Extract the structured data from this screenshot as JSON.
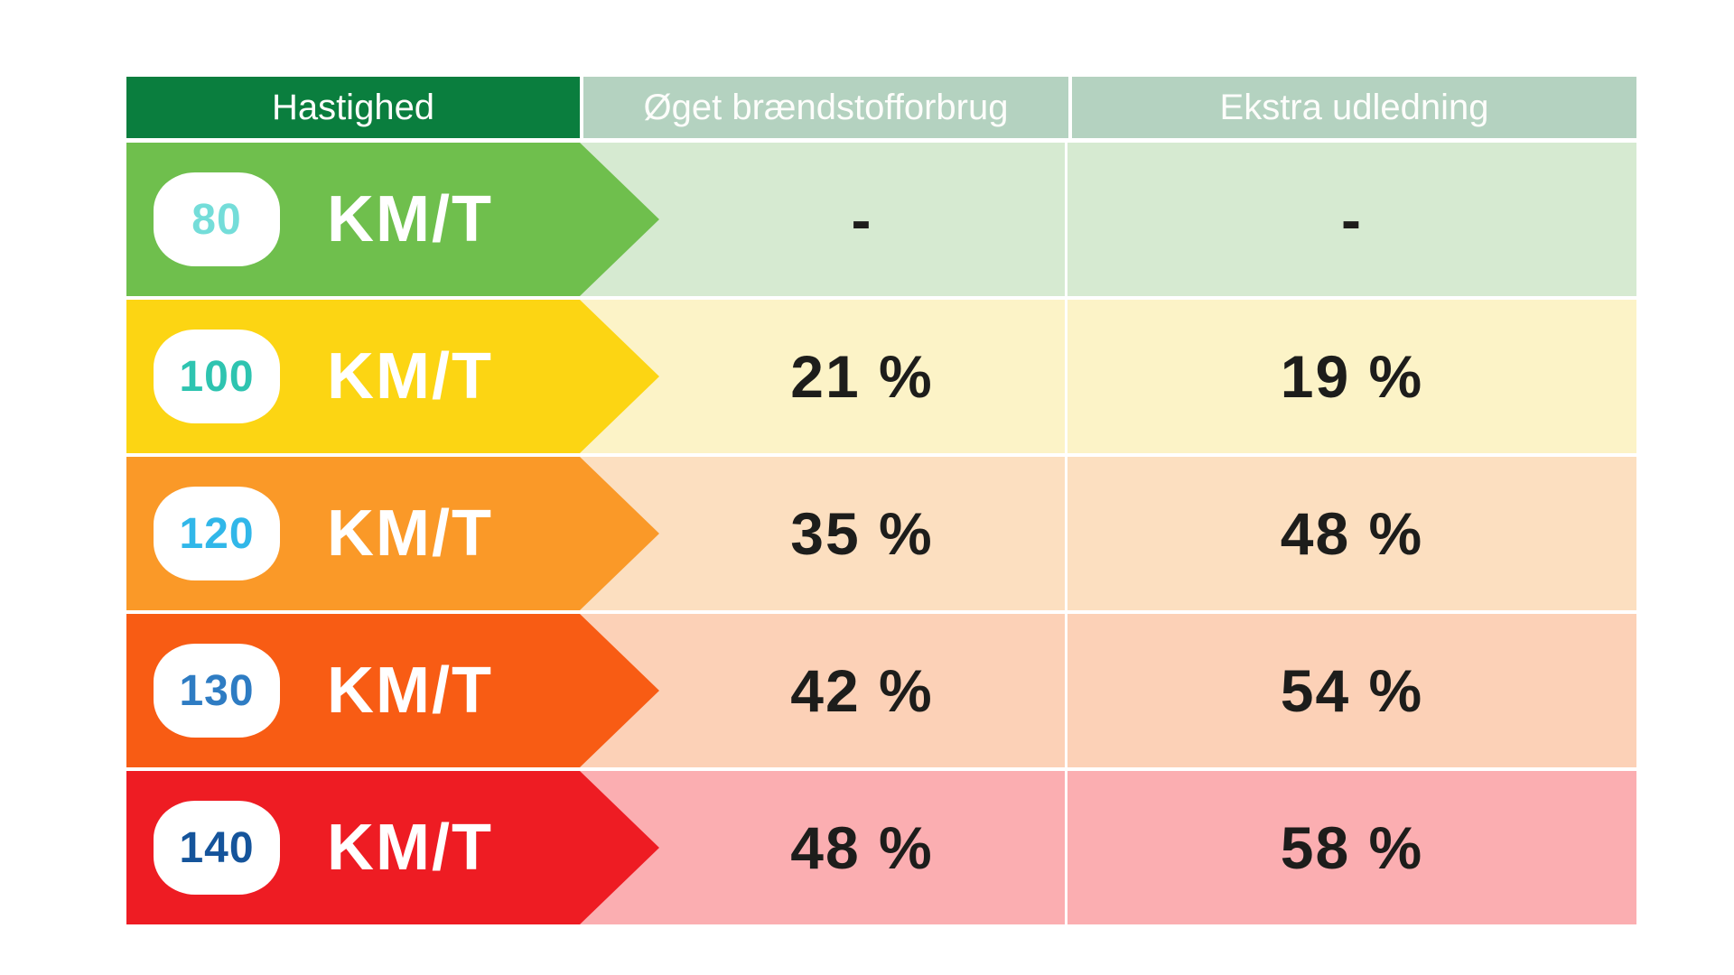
{
  "colors": {
    "page_bg": "#ffffff",
    "header_speed_bg": "#0a7e3e",
    "header_data_bg": "#b4d2c0",
    "value_text": "#1d1d1b"
  },
  "table": {
    "headers": [
      {
        "label": "Hastighed"
      },
      {
        "label": "Øget brændstofforbrug"
      },
      {
        "label": "Ekstra udledning"
      }
    ],
    "rows": [
      {
        "speed": "80",
        "unit": "KM/T",
        "fuel": "-",
        "emission": "-",
        "band_color": "#6fbf4d",
        "cell_color": "#d6ead1",
        "speed_text_color": "#74ddd9"
      },
      {
        "speed": "100",
        "unit": "KM/T",
        "fuel": "21 %",
        "emission": "19 %",
        "band_color": "#fcd513",
        "cell_color": "#fcf3c7",
        "speed_text_color": "#2ec4b0"
      },
      {
        "speed": "120",
        "unit": "KM/T",
        "fuel": "35 %",
        "emission": "48 %",
        "band_color": "#fa9928",
        "cell_color": "#fcdfc0",
        "speed_text_color": "#31b7e9"
      },
      {
        "speed": "130",
        "unit": "KM/T",
        "fuel": "42 %",
        "emission": "54 %",
        "band_color": "#f85c14",
        "cell_color": "#fcd1b7",
        "speed_text_color": "#2e7cc3"
      },
      {
        "speed": "140",
        "unit": "KM/T",
        "fuel": "48 %",
        "emission": "58 %",
        "band_color": "#ee1c23",
        "cell_color": "#fbaeb1",
        "speed_text_color": "#15549b"
      }
    ]
  },
  "chart_data": {
    "type": "table",
    "title": "",
    "columns": [
      "Hastighed",
      "Øget brændstofforbrug",
      "Ekstra udledning"
    ],
    "rows": [
      [
        "80 KM/T",
        "-",
        "-"
      ],
      [
        "100 KM/T",
        "21 %",
        "19 %"
      ],
      [
        "120 KM/T",
        "35 %",
        "48 %"
      ],
      [
        "130 KM/T",
        "42 %",
        "54 %"
      ],
      [
        "140 KM/T",
        "48 %",
        "58 %"
      ]
    ],
    "speeds_km_t": [
      80,
      100,
      120,
      130,
      140
    ],
    "fuel_increase_pct": [
      null,
      21,
      35,
      42,
      48
    ],
    "extra_emission_pct": [
      null,
      19,
      48,
      54,
      58
    ]
  }
}
